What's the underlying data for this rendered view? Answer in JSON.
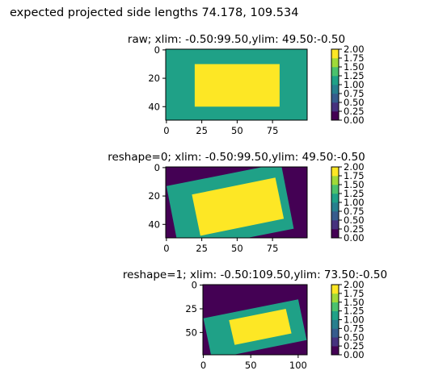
{
  "suptitle": "expected projected side lengths 74.178, 109.534",
  "colors": {
    "low": "#440154",
    "mid": "#21918c",
    "high": "#fde725",
    "frame": "#000000"
  },
  "colormap": {
    "name": "viridis",
    "levels": 8,
    "level_colors": [
      "#440154",
      "#46327e",
      "#365c8d",
      "#277f8e",
      "#1fa187",
      "#4ac16d",
      "#a0da39",
      "#fde725"
    ]
  },
  "chart_data": [
    {
      "type": "heatmap",
      "title": "raw; xlim: -0.50:99.50,ylim: 49.50:-0.50",
      "xlim": [
        -0.5,
        99.5
      ],
      "ylim": [
        49.5,
        -0.5
      ],
      "x_ticks": [
        0,
        25,
        50,
        75
      ],
      "y_ticks": [
        0,
        20,
        40
      ],
      "background_value": 1,
      "regions": [
        {
          "value": 2,
          "shape": "rect",
          "x": [
            20,
            80
          ],
          "y": [
            10,
            40
          ]
        }
      ],
      "colorbar": {
        "min": 0,
        "max": 2,
        "ticks": [
          "0.00",
          "0.25",
          "0.50",
          "0.75",
          "1.00",
          "1.25",
          "1.50",
          "1.75",
          "2.00"
        ]
      }
    },
    {
      "type": "heatmap",
      "title": "reshape=0; xlim: -0.50:99.50,ylim: 49.50:-0.50",
      "xlim": [
        -0.5,
        99.5
      ],
      "ylim": [
        49.5,
        -0.5
      ],
      "x_ticks": [
        0,
        25,
        50,
        75
      ],
      "y_ticks": [
        0,
        20,
        40
      ],
      "background_value": 0,
      "regions": [
        {
          "value": 1,
          "shape": "polygon",
          "points": [
            [
              0,
              13
            ],
            [
              81,
              -3
            ],
            [
              90,
              43
            ],
            [
              9,
              59
            ]
          ]
        },
        {
          "value": 2,
          "shape": "polygon",
          "points": [
            [
              18,
              19
            ],
            [
              77,
              7
            ],
            [
              83,
              36
            ],
            [
              24,
              48
            ]
          ]
        }
      ],
      "colorbar": {
        "min": 0,
        "max": 2,
        "ticks": [
          "0.00",
          "0.25",
          "0.50",
          "0.75",
          "1.00",
          "1.25",
          "1.50",
          "1.75",
          "2.00"
        ]
      }
    },
    {
      "type": "heatmap",
      "title": "reshape=1; xlim: -0.50:109.50,ylim: 73.50:-0.50",
      "xlim": [
        -0.5,
        109.5
      ],
      "ylim": [
        73.5,
        -0.5
      ],
      "x_ticks": [
        0,
        50,
        100
      ],
      "y_ticks": [
        0,
        25,
        50
      ],
      "background_value": 0,
      "regions": [
        {
          "value": 1,
          "shape": "polygon",
          "points": [
            [
              0,
              35
            ],
            [
              100,
              15
            ],
            [
              109,
              58
            ],
            [
              9,
              78
            ]
          ]
        },
        {
          "value": 2,
          "shape": "polygon",
          "points": [
            [
              27,
              37
            ],
            [
              87,
              25
            ],
            [
              93,
              51
            ],
            [
              33,
              63
            ]
          ]
        }
      ],
      "colorbar": {
        "min": 0,
        "max": 2,
        "ticks": [
          "0.00",
          "0.25",
          "0.50",
          "0.75",
          "1.00",
          "1.25",
          "1.50",
          "1.75",
          "2.00"
        ]
      }
    }
  ]
}
